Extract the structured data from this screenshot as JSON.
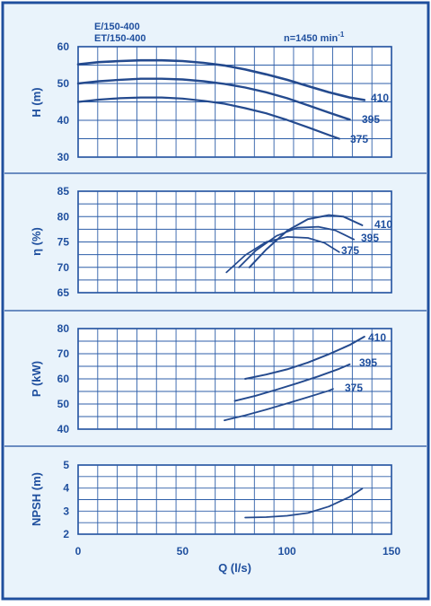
{
  "header": {
    "model_line1": "E/150-400",
    "model_line2": "ET/150-400",
    "speed_prefix": "n=1450 min",
    "speed_exp": "-1"
  },
  "colors": {
    "frame": "#1f4f9e",
    "grid": "#2d5ea8",
    "curve": "#244a8e",
    "text": "#1f4f9e",
    "panel_fill": "#e9f3fb"
  },
  "chart_data": [
    {
      "type": "line",
      "id": "head",
      "ylabel": "H (m)",
      "ylim": [
        30,
        60
      ],
      "yticks": [
        30,
        40,
        50,
        60
      ],
      "xlim": [
        0,
        150
      ],
      "grid": true,
      "series": [
        {
          "name": "410",
          "x": [
            0,
            10,
            20,
            30,
            40,
            50,
            60,
            70,
            80,
            90,
            100,
            110,
            120,
            130,
            137
          ],
          "y": [
            55.2,
            55.8,
            56.1,
            56.3,
            56.3,
            56.1,
            55.6,
            54.9,
            53.8,
            52.5,
            51.0,
            49.3,
            47.6,
            46.2,
            45.5
          ]
        },
        {
          "name": "395",
          "x": [
            0,
            10,
            20,
            30,
            40,
            50,
            60,
            70,
            80,
            90,
            100,
            110,
            120,
            130
          ],
          "y": [
            50.0,
            50.6,
            51.0,
            51.3,
            51.3,
            51.1,
            50.6,
            49.9,
            48.9,
            47.6,
            46.0,
            44.1,
            42.1,
            40.2
          ]
        },
        {
          "name": "375",
          "x": [
            0,
            10,
            20,
            30,
            40,
            50,
            60,
            70,
            80,
            90,
            100,
            110,
            120,
            125
          ],
          "y": [
            45.0,
            45.6,
            46.0,
            46.2,
            46.2,
            45.9,
            45.3,
            44.5,
            43.3,
            41.9,
            40.1,
            38.1,
            36.0,
            35.0
          ]
        }
      ]
    },
    {
      "type": "line",
      "id": "efficiency",
      "ylabel": "η (%)",
      "ylim": [
        65,
        85
      ],
      "yticks": [
        65,
        70,
        75,
        80,
        85
      ],
      "xlim": [
        0,
        150
      ],
      "grid": true,
      "series": [
        {
          "name": "410",
          "x": [
            82,
            90,
            100,
            110,
            120,
            127,
            136
          ],
          "y": [
            70.0,
            73.5,
            77.2,
            79.5,
            80.3,
            80.0,
            78.3
          ]
        },
        {
          "name": "395",
          "x": [
            77,
            85,
            95,
            105,
            115,
            123,
            132
          ],
          "y": [
            70.0,
            73.3,
            76.2,
            77.8,
            78.0,
            77.3,
            75.5
          ]
        },
        {
          "name": "375",
          "x": [
            71,
            80,
            90,
            100,
            110,
            118,
            125
          ],
          "y": [
            69.0,
            72.4,
            75.0,
            76.0,
            75.8,
            74.8,
            73.0
          ]
        }
      ]
    },
    {
      "type": "line",
      "id": "power",
      "ylabel": "P (kW)",
      "ylim": [
        40,
        80
      ],
      "yticks": [
        40,
        50,
        60,
        70,
        80
      ],
      "xlim": [
        0,
        150
      ],
      "grid": true,
      "series": [
        {
          "name": "410",
          "x": [
            80,
            90,
            100,
            110,
            120,
            130,
            137
          ],
          "y": [
            60.0,
            61.7,
            63.8,
            66.5,
            69.8,
            73.5,
            76.8
          ]
        },
        {
          "name": "395",
          "x": [
            75,
            85,
            95,
            105,
            115,
            125,
            130
          ],
          "y": [
            51.2,
            53.3,
            55.7,
            58.3,
            61.0,
            64.0,
            65.8
          ]
        },
        {
          "name": "375",
          "x": [
            70,
            80,
            90,
            100,
            110,
            120,
            122
          ],
          "y": [
            43.5,
            45.5,
            47.8,
            50.2,
            52.7,
            55.3,
            56.0
          ]
        }
      ]
    },
    {
      "type": "line",
      "id": "npsh",
      "ylabel": "NPSH (m)",
      "ylim": [
        2,
        5
      ],
      "yticks": [
        2,
        3,
        4,
        5
      ],
      "xlim": [
        0,
        150
      ],
      "xticks": [
        0,
        50,
        100,
        150
      ],
      "xlabel": "Q (l/s)",
      "grid": true,
      "series": [
        {
          "name": "",
          "x": [
            80,
            90,
            100,
            110,
            120,
            130,
            136
          ],
          "y": [
            2.72,
            2.74,
            2.8,
            2.92,
            3.2,
            3.62,
            3.98
          ]
        }
      ]
    }
  ]
}
